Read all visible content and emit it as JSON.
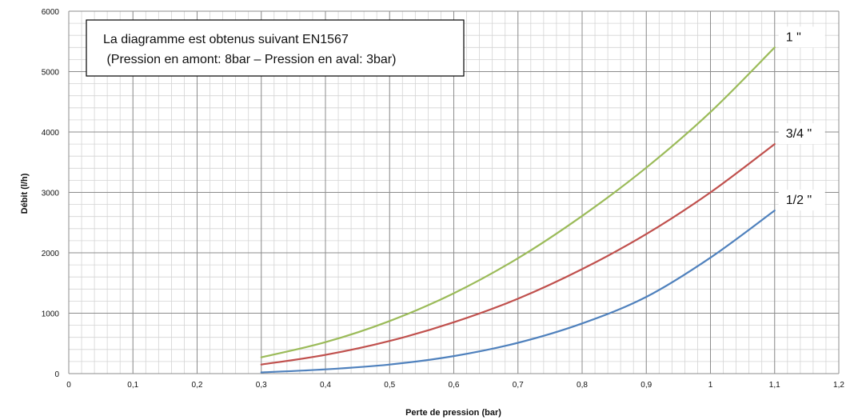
{
  "chart_data": {
    "type": "line",
    "xlabel": "Perte de pression (bar)",
    "ylabel": "Débit (l/h)",
    "xlim": [
      0,
      1.2
    ],
    "ylim": [
      0,
      6000
    ],
    "x_ticks": [
      "0",
      "0,1",
      "0,2",
      "0,3",
      "0,4",
      "0,5",
      "0,6",
      "0,7",
      "0,8",
      "0,9",
      "1",
      "1,1",
      "1,2"
    ],
    "y_ticks": [
      "0",
      "1000",
      "2000",
      "3000",
      "4000",
      "5000",
      "6000"
    ],
    "grid": true,
    "annotation": {
      "line1": "La diagramme est obtenus suivant EN1567",
      "line2": " (Pression en amont: 8bar – Pression en aval: 3bar)"
    },
    "series": [
      {
        "name": "1/2 \"",
        "color": "#4f81bd",
        "x": [
          0.3,
          0.4,
          0.5,
          0.6,
          0.7,
          0.8,
          0.9,
          1.0,
          1.1
        ],
        "y": [
          20,
          70,
          150,
          290,
          510,
          830,
          1270,
          1920,
          2700
        ]
      },
      {
        "name": "3/4 \"",
        "color": "#c0504d",
        "x": [
          0.3,
          0.4,
          0.5,
          0.6,
          0.7,
          0.8,
          0.9,
          1.0,
          1.1
        ],
        "y": [
          150,
          310,
          540,
          850,
          1240,
          1730,
          2310,
          3000,
          3800
        ]
      },
      {
        "name": "1 \"",
        "color": "#9bbb59",
        "x": [
          0.3,
          0.4,
          0.5,
          0.6,
          0.7,
          0.8,
          0.9,
          1.0,
          1.1
        ],
        "y": [
          270,
          520,
          870,
          1330,
          1910,
          2610,
          3410,
          4330,
          5400
        ]
      }
    ]
  }
}
